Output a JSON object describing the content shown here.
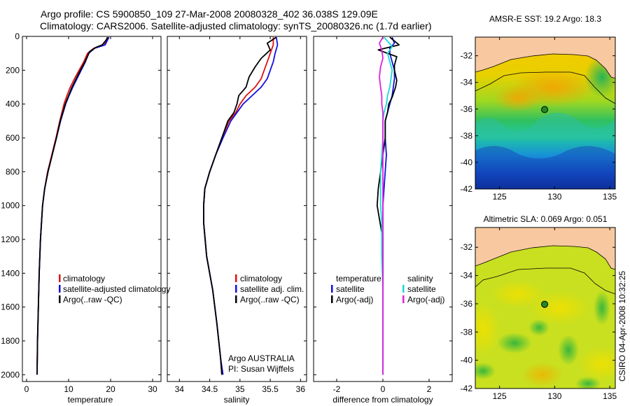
{
  "header": {
    "line1": "Argo profile: CS 5900850_109 27-Mar-2008 20080328_402 36.038S 129.09E",
    "line2": "Climatology: CARS2006. Satellite-adjusted climatology: synTS_20080326.nc (1.7d earlier)"
  },
  "vertical_credit": "CSIRO 04-Apr-2008 10:32:25",
  "credit": {
    "line1": "Argo AUSTRALIA",
    "line2": "PI: Susan Wijffels"
  },
  "colors": {
    "climatology": "#e01010",
    "satellite": "#1010e0",
    "argo": "#000000",
    "salinity_satellite": "#18d8d8",
    "salinity_argo": "#e020e0",
    "land": "#f8c8a0",
    "float_marker": "#228822"
  },
  "chart_data": [
    {
      "type": "line",
      "id": "temperature",
      "xlabel": "temperature",
      "xlim": [
        -1,
        32
      ],
      "ylim": [
        2040,
        0
      ],
      "y_inverted": true,
      "xticks": [
        0,
        10,
        20,
        30
      ],
      "yticks": [
        0,
        200,
        400,
        600,
        800,
        1000,
        1200,
        1400,
        1600,
        1800,
        2000
      ],
      "legend": {
        "position": "center",
        "entries": [
          "climatology",
          "satellite-adjusted climatology",
          "Argo(..raw -QC)"
        ]
      },
      "series": [
        {
          "name": "climatology",
          "color": "#e01010",
          "x": [
            19.2,
            19.0,
            18.5,
            16.0,
            14.5,
            13.6,
            12.5,
            11.4,
            10.4,
            9.6,
            8.9,
            7.9,
            7.0,
            6.0,
            5.0,
            4.3,
            3.8,
            3.3,
            3.0,
            2.8,
            2.6,
            2.5
          ],
          "y": [
            5,
            20,
            50,
            70,
            100,
            150,
            200,
            250,
            300,
            350,
            400,
            500,
            600,
            700,
            800,
            900,
            1000,
            1200,
            1400,
            1600,
            1800,
            1950
          ]
        },
        {
          "name": "satellite-adjusted climatology",
          "color": "#1010e0",
          "x": [
            19.6,
            19.3,
            18.7,
            16.2,
            14.8,
            14.0,
            13.0,
            12.0,
            11.0,
            10.1,
            9.3,
            8.1,
            7.1,
            6.1,
            5.1,
            4.3,
            3.8,
            3.3,
            3.0,
            2.8,
            2.6,
            2.5
          ],
          "y": [
            5,
            20,
            50,
            70,
            100,
            150,
            200,
            250,
            300,
            350,
            400,
            500,
            600,
            700,
            800,
            900,
            1000,
            1200,
            1400,
            1600,
            1800,
            2000
          ]
        },
        {
          "name": "Argo(..raw -QC)",
          "color": "#000000",
          "x": [
            19.4,
            19.0,
            18.0,
            16.5,
            15.0,
            13.9,
            12.8,
            11.8,
            10.8,
            10.0,
            9.2,
            8.0,
            7.1,
            6.1,
            5.1,
            4.3,
            3.8,
            3.3,
            3.0,
            2.8,
            2.6,
            2.5
          ],
          "y": [
            5,
            20,
            50,
            65,
            90,
            150,
            200,
            250,
            300,
            350,
            400,
            500,
            600,
            700,
            800,
            900,
            1000,
            1200,
            1400,
            1600,
            1800,
            2000
          ]
        }
      ]
    },
    {
      "type": "line",
      "id": "salinity",
      "xlabel": "salinity",
      "xlim": [
        33.8,
        36.1
      ],
      "ylim": [
        2040,
        0
      ],
      "y_inverted": true,
      "xticks": [
        34,
        34.5,
        35,
        35.5,
        36
      ],
      "legend": {
        "position": "center",
        "entries": [
          "climatology",
          "satellite adj. clim.",
          "Argo(..raw -QC)"
        ]
      },
      "series": [
        {
          "name": "climatology",
          "color": "#e01010",
          "x": [
            35.55,
            35.55,
            35.5,
            35.45,
            35.4,
            35.35,
            35.25,
            35.1,
            35.0,
            34.93,
            34.82,
            34.7,
            34.6,
            34.5,
            34.42,
            34.4,
            34.4,
            34.45,
            34.55,
            34.62,
            34.68,
            34.7
          ],
          "y": [
            5,
            50,
            100,
            150,
            200,
            250,
            300,
            350,
            400,
            450,
            500,
            600,
            700,
            800,
            900,
            1000,
            1100,
            1300,
            1500,
            1700,
            1900,
            2000
          ]
        },
        {
          "name": "satellite adj. clim.",
          "color": "#1010e0",
          "x": [
            35.6,
            35.62,
            35.58,
            35.55,
            35.5,
            35.45,
            35.35,
            35.2,
            35.05,
            34.95,
            34.85,
            34.72,
            34.6,
            34.5,
            34.42,
            34.4,
            34.4,
            34.45,
            34.55,
            34.62,
            34.68,
            34.72
          ],
          "y": [
            5,
            50,
            100,
            150,
            200,
            250,
            300,
            350,
            400,
            450,
            500,
            600,
            700,
            800,
            900,
            1000,
            1100,
            1300,
            1500,
            1700,
            1900,
            2000
          ]
        },
        {
          "name": "Argo(..raw -QC)",
          "color": "#000000",
          "x": [
            35.6,
            35.45,
            35.5,
            35.35,
            35.25,
            35.15,
            35.1,
            34.98,
            34.95,
            34.9,
            34.8,
            34.7,
            34.6,
            34.5,
            34.42,
            34.4,
            34.4,
            34.45,
            34.55,
            34.62,
            34.68,
            34.7
          ],
          "y": [
            5,
            40,
            80,
            130,
            180,
            240,
            300,
            350,
            400,
            450,
            500,
            600,
            700,
            800,
            900,
            1000,
            1100,
            1300,
            1500,
            1700,
            1900,
            2000
          ]
        }
      ]
    },
    {
      "type": "line",
      "id": "difference",
      "xlabel": "difference from climatology",
      "xlim": [
        -3,
        3
      ],
      "ylim": [
        2040,
        0
      ],
      "y_inverted": true,
      "xticks": [
        -2,
        0,
        2
      ],
      "legend_left": {
        "title": "temperature",
        "entries": [
          "satellite",
          "Argo(-adj)"
        ]
      },
      "legend_right": {
        "title": "salinity",
        "entries": [
          "satellite",
          "Argo(-adj)"
        ]
      },
      "series": [
        {
          "name": "temperature satellite",
          "color": "#1010e0",
          "x": [
            0.4,
            0.5,
            0.3,
            0.3,
            0.4,
            0.5,
            0.5,
            0.45,
            0.4,
            0.3,
            0.2,
            0.1,
            0.1,
            0.15,
            0.1,
            0.05,
            0.0,
            0.0,
            0.0,
            0.0,
            0.0,
            0.0
          ],
          "y": [
            5,
            40,
            70,
            100,
            150,
            200,
            250,
            300,
            350,
            400,
            450,
            500,
            600,
            700,
            800,
            900,
            1000,
            1200,
            1400,
            1600,
            1800,
            2000
          ]
        },
        {
          "name": "temperature Argo(-adj)",
          "color": "#000000",
          "x": [
            0.3,
            0.7,
            -0.2,
            0.6,
            0.5,
            0.5,
            0.6,
            0.55,
            0.4,
            0.25,
            0.2,
            0.1,
            0.1,
            0.0,
            -0.1,
            -0.2,
            -0.25,
            0.0,
            0.0,
            0.0,
            0.0,
            0.0
          ],
          "y": [
            5,
            50,
            80,
            120,
            170,
            200,
            260,
            300,
            360,
            400,
            450,
            500,
            600,
            700,
            800,
            900,
            1000,
            1200,
            1400,
            1600,
            1800,
            2000
          ]
        },
        {
          "name": "salinity satellite",
          "color": "#18d8d8",
          "x": [
            0.05,
            0.4,
            0.2,
            0.3,
            0.4,
            0.35,
            0.3,
            0.2,
            0.15,
            0.05,
            0.0,
            0.0,
            -0.05,
            -0.1,
            -0.1,
            -0.1,
            -0.05,
            -0.05,
            0.0,
            0.0,
            0.0,
            0.0
          ],
          "y": [
            5,
            60,
            100,
            150,
            200,
            250,
            300,
            350,
            400,
            450,
            500,
            600,
            700,
            800,
            900,
            1000,
            1100,
            1300,
            1500,
            1700,
            1900,
            2000
          ]
        },
        {
          "name": "salinity Argo(-adj)",
          "color": "#e020e0",
          "x": [
            0.0,
            -0.15,
            -0.05,
            0.0,
            -0.1,
            -0.15,
            -0.1,
            -0.05,
            -0.05,
            0.0,
            0.0,
            0.0,
            0.0,
            0.0,
            0.0,
            0.0,
            0.0,
            0.0,
            0.0,
            0.0,
            0.0,
            0.0
          ],
          "y": [
            5,
            40,
            80,
            130,
            180,
            240,
            300,
            350,
            400,
            450,
            500,
            600,
            700,
            800,
            900,
            1000,
            1100,
            1300,
            1500,
            1700,
            1900,
            2000
          ]
        }
      ]
    },
    {
      "type": "heatmap",
      "id": "amsre_sst_map",
      "title": "AMSR-E SST: 19.2 Argo: 18.3",
      "xlim": [
        122.8,
        135.5
      ],
      "ylim": [
        -42,
        -30.6
      ],
      "xticks": [
        125,
        130,
        135
      ],
      "yticks": [
        -32,
        -34,
        -36,
        -38,
        -40,
        -42
      ],
      "float_position": {
        "lon": 129.09,
        "lat": -36.038
      }
    },
    {
      "type": "heatmap",
      "id": "altimetric_sla_map",
      "title": "Altimetric SLA: 0.069 Argo: 0.051",
      "xlim": [
        122.8,
        135.5
      ],
      "ylim": [
        -42,
        -30.6
      ],
      "xticks": [
        125,
        130,
        135
      ],
      "yticks": [
        -32,
        -34,
        -36,
        -38,
        -40,
        -42
      ],
      "float_position": {
        "lon": 129.09,
        "lat": -36.038
      }
    }
  ]
}
